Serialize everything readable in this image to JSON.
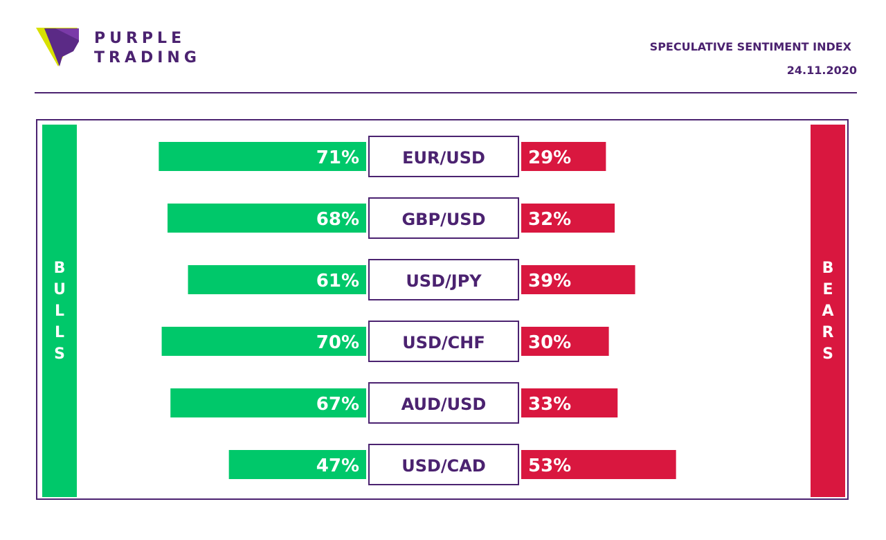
{
  "header": {
    "logo_line1": "PURPLE",
    "logo_line2": "TRADING",
    "title": "SPECULATIVE SENTIMENT INDEX",
    "date": "24.11.2020"
  },
  "colors": {
    "brand_purple": "#4b2270",
    "bulls_green": "#00c86a",
    "bears_red": "#d9173f",
    "logo_yellow": "#d8e000"
  },
  "sides": {
    "bulls": "BULLS",
    "bears": "BEARS"
  },
  "chart_data": {
    "type": "bar",
    "orientation": "horizontal-diverging",
    "categories": [
      "EUR/USD",
      "GBP/USD",
      "USD/JPY",
      "USD/CHF",
      "AUD/USD",
      "USD/CAD"
    ],
    "series": [
      {
        "name": "BULLS",
        "values": [
          71,
          68,
          61,
          70,
          67,
          47
        ],
        "labels": [
          "71%",
          "68%",
          "61%",
          "70%",
          "67%",
          "47%"
        ]
      },
      {
        "name": "BEARS",
        "values": [
          29,
          32,
          39,
          30,
          33,
          53
        ],
        "labels": [
          "29%",
          "32%",
          "39%",
          "30%",
          "33%",
          "53%"
        ]
      }
    ],
    "unit": "%",
    "title": "SPECULATIVE SENTIMENT INDEX",
    "xlabel": "",
    "ylabel": "",
    "grid": false,
    "legend": "none"
  }
}
